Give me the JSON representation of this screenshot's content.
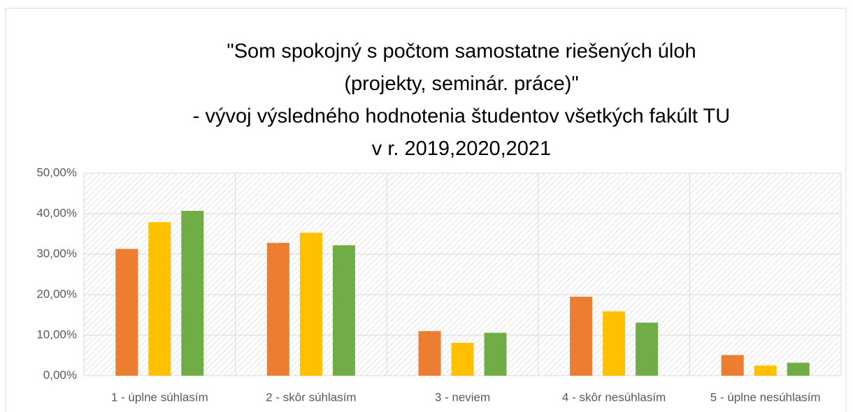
{
  "chart_data": {
    "type": "bar",
    "title": [
      "\"Som spokojný s počtom samostatne riešených úloh",
      "(projekty, seminár. práce)\"",
      "- vývoj výsledného hodnotenia študentov všetkých fakúlt TU",
      "v r. 2019,2020,2021"
    ],
    "categories": [
      "1 - úplne súhlasím",
      "2 - skôr súhlasím",
      "3 - neviem",
      "4 - skôr nesúhlasím",
      "5 - úplne nesúhlasím"
    ],
    "series": [
      {
        "color": "#ed7d31",
        "values": [
          31.3,
          32.8,
          11.0,
          19.5,
          5.1
        ]
      },
      {
        "color": "#ffc000",
        "values": [
          37.9,
          35.3,
          8.1,
          15.9,
          2.5
        ]
      },
      {
        "color": "#70ad47",
        "values": [
          40.7,
          32.2,
          10.6,
          13.1,
          3.2
        ]
      }
    ],
    "ylim": [
      0,
      50
    ],
    "yticks": [
      {
        "value": 0,
        "label": "0,00%"
      },
      {
        "value": 10,
        "label": "10,00%"
      },
      {
        "value": 20,
        "label": "20,00%"
      },
      {
        "value": 30,
        "label": "30,00%"
      },
      {
        "value": 40,
        "label": "40,00%"
      },
      {
        "value": 50,
        "label": "50,00%"
      }
    ],
    "grid": true
  }
}
